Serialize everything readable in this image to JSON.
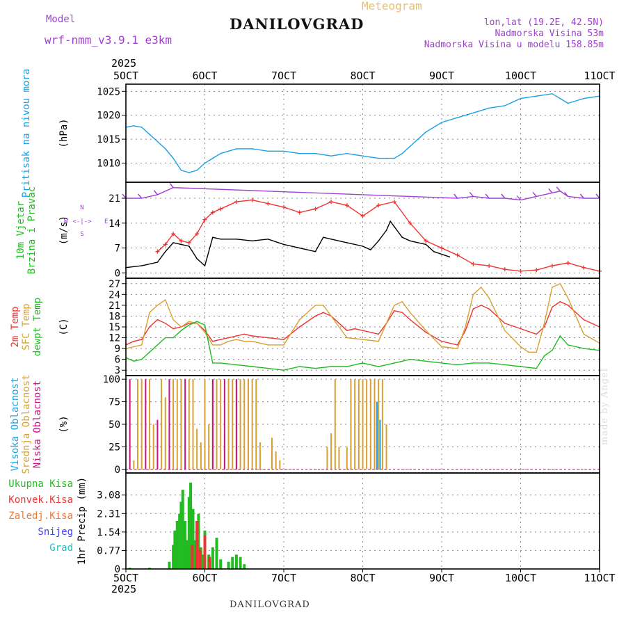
{
  "header": {
    "model_label": "Model",
    "model_name": "wrf-nmm_v3.9.1 e3km",
    "station": "DANILOVGRAD",
    "product": "Meteogram",
    "coords": "lon,lat (19.2E, 42.5N)",
    "elevation": "Nadmorska Visina 53m",
    "model_elevation": "Nadmorska Visina u modelu 158.85m",
    "year_top": "2025",
    "year_bottom": "2025",
    "footer_station": "DANILOVGRAD",
    "credit": "made by Angel"
  },
  "colors": {
    "pressure": "#1aa0e6",
    "wind10": "#22bb22",
    "wind_label2": "#e6a020",
    "temp2m": "#ee3333",
    "sfc": "#d8a030",
    "dewpt": "#22bb22",
    "high_cloud": "#1aa0e6",
    "mid_cloud": "#d8a030",
    "low_cloud": "#cc1188",
    "precip_total": "#22bb22",
    "precip_conv": "#ee3333",
    "precip_frz": "#ee7733",
    "snow": "#4040ee",
    "hail": "#22c0c0",
    "purple": "#a040d0",
    "axis": "#000000",
    "grid": "#888888"
  },
  "chart_data": [
    {
      "type": "line",
      "panel": "pressure",
      "title": "Meteogram",
      "ylabel_lines": [
        "Pritisak na nivou mora"
      ],
      "unit": "(hPa)",
      "x_ticks": [
        "5OCT",
        "6OCT",
        "7OCT",
        "8OCT",
        "9OCT",
        "10OCT",
        "11OCT"
      ],
      "ylim": [
        1006,
        1026.5
      ],
      "y_ticks": [
        1010,
        1015,
        1020,
        1025
      ],
      "series": [
        {
          "name": "Pritisak na nivou mora",
          "color_key": "pressure",
          "x": [
            5.0,
            5.1,
            5.2,
            5.3,
            5.4,
            5.5,
            5.6,
            5.7,
            5.8,
            5.9,
            6.0,
            6.1,
            6.2,
            6.3,
            6.4,
            6.6,
            6.8,
            7.0,
            7.2,
            7.4,
            7.6,
            7.8,
            8.0,
            8.2,
            8.3,
            8.4,
            8.5,
            8.6,
            8.7,
            8.8,
            9.0,
            9.2,
            9.4,
            9.6,
            9.8,
            10.0,
            10.2,
            10.4,
            10.5,
            10.6,
            10.8,
            11.0
          ],
          "y": [
            1017.5,
            1017.8,
            1017.5,
            1016,
            1014.5,
            1013,
            1011,
            1008.5,
            1008,
            1008.5,
            1010,
            1011,
            1012,
            1012.5,
            1013,
            1013,
            1012.5,
            1012.5,
            1012,
            1012,
            1011.5,
            1012,
            1011.5,
            1011,
            1011,
            1011,
            1012,
            1013.5,
            1015,
            1016.5,
            1018.5,
            1019.5,
            1020.5,
            1021.5,
            1022,
            1023.5,
            1024,
            1024.5,
            1023.5,
            1022.5,
            1023.5,
            1024
          ]
        }
      ]
    },
    {
      "type": "line",
      "panel": "wind",
      "ylabel_lines": [
        "10m Vjetar",
        "Brzina i Pravac"
      ],
      "unit": "(m/s)",
      "compass": [
        "W",
        "<-|->",
        "E",
        "N",
        "S"
      ],
      "ylim": [
        -1.5,
        25.5
      ],
      "y_ticks": [
        0,
        7,
        14,
        21
      ],
      "series": [
        {
          "name": "Brzina 10m",
          "color_key": "axis",
          "x": [
            5.0,
            5.2,
            5.4,
            5.5,
            5.6,
            5.7,
            5.8,
            5.9,
            6.0,
            6.1,
            6.2,
            6.4,
            6.6,
            6.8,
            7.0,
            7.2,
            7.4,
            7.5,
            7.6,
            7.8,
            8.0,
            8.1,
            8.2,
            8.3,
            8.35,
            8.4,
            8.5,
            8.6,
            8.8,
            8.9,
            9.1
          ],
          "y": [
            1.5,
            2,
            3,
            6,
            8.5,
            8,
            7.5,
            4,
            2,
            10,
            9.5,
            9.5,
            9,
            9.5,
            8,
            7,
            6,
            10,
            9.5,
            8.5,
            7.5,
            6.5,
            9,
            12,
            14.5,
            13,
            10,
            9,
            8,
            6,
            4.5
          ]
        },
        {
          "name": "Udari vjetra",
          "color_key": "temp2m",
          "x": [
            5.4,
            5.5,
            5.6,
            5.7,
            5.8,
            5.9,
            6.0,
            6.1,
            6.2,
            6.4,
            6.6,
            6.8,
            7.0,
            7.2,
            7.4,
            7.6,
            7.8,
            8.0,
            8.2,
            8.4,
            8.6,
            8.8,
            9.0,
            9.2,
            9.4,
            9.6,
            9.8,
            10.0,
            10.2,
            10.4,
            10.6,
            10.8,
            11.0
          ],
          "y": [
            6,
            8,
            11,
            9,
            8.5,
            11,
            15,
            17,
            18,
            20,
            20.5,
            19.5,
            18.5,
            17,
            18,
            20,
            19,
            16,
            19,
            20,
            14,
            9,
            7,
            5,
            2.5,
            2,
            1,
            0.5,
            0.8,
            2,
            2.8,
            1.5,
            0.5
          ]
        },
        {
          "name": "Pravac (ljubicasto)",
          "color_key": "purple",
          "x": [
            5.0,
            5.2,
            5.4,
            5.6,
            9.2,
            9.4,
            9.6,
            9.8,
            10.0,
            10.2,
            10.4,
            10.5,
            10.6,
            10.8,
            11.0
          ],
          "y": [
            21,
            21,
            22,
            24,
            21,
            21.5,
            21,
            21,
            20.5,
            21.5,
            22.5,
            23,
            21.5,
            21,
            21
          ]
        }
      ]
    },
    {
      "type": "line",
      "panel": "temperature",
      "ylabel_lines": [
        "2m Temp",
        "SFC Temp",
        "dewpt Temp"
      ],
      "unit": "(C)",
      "ylim": [
        1.5,
        28.5
      ],
      "y_ticks": [
        3,
        6,
        9,
        12,
        15,
        18,
        21,
        24,
        27
      ],
      "series": [
        {
          "name": "2m Temp",
          "color_key": "temp2m",
          "x": [
            5.0,
            5.1,
            5.2,
            5.3,
            5.4,
            5.5,
            5.6,
            5.7,
            5.8,
            5.9,
            6.0,
            6.1,
            6.2,
            6.3,
            6.4,
            6.5,
            6.6,
            6.8,
            7.0,
            7.2,
            7.4,
            7.5,
            7.6,
            7.8,
            7.9,
            8.0,
            8.2,
            8.3,
            8.4,
            8.5,
            8.6,
            8.8,
            9.0,
            9.2,
            9.3,
            9.4,
            9.5,
            9.6,
            9.8,
            10.0,
            10.2,
            10.3,
            10.4,
            10.5,
            10.6,
            10.8,
            11.0
          ],
          "y": [
            10,
            11,
            11.5,
            15,
            17,
            16,
            14.5,
            15,
            16,
            16,
            14,
            11,
            11.5,
            12,
            12.5,
            13,
            12.5,
            12,
            11.5,
            15,
            18,
            19,
            18,
            14,
            14.5,
            14,
            13,
            16,
            19.5,
            19,
            17,
            13.5,
            11,
            10,
            14,
            20,
            21,
            20,
            16,
            14.5,
            13,
            15,
            20.5,
            22,
            21,
            17,
            15
          ]
        },
        {
          "name": "SFC Temp",
          "color_key": "sfc",
          "x": [
            5.0,
            5.1,
            5.2,
            5.3,
            5.4,
            5.5,
            5.6,
            5.7,
            5.8,
            5.9,
            6.0,
            6.1,
            6.2,
            6.3,
            6.4,
            6.5,
            6.6,
            6.8,
            7.0,
            7.2,
            7.4,
            7.5,
            7.6,
            7.8,
            8.0,
            8.2,
            8.3,
            8.4,
            8.5,
            8.6,
            8.8,
            9.0,
            9.2,
            9.3,
            9.4,
            9.5,
            9.6,
            9.8,
            10.0,
            10.1,
            10.2,
            10.3,
            10.4,
            10.5,
            10.6,
            10.8,
            11.0
          ],
          "y": [
            9,
            9.5,
            10,
            19,
            21,
            22.5,
            17,
            15,
            16.5,
            16,
            13.5,
            10,
            10,
            11,
            11.5,
            11,
            11,
            10,
            10,
            17,
            21,
            21,
            18,
            12,
            11.5,
            11,
            16,
            21,
            22,
            19,
            14,
            9.5,
            9,
            15,
            24,
            26,
            23,
            14,
            9.5,
            8,
            8,
            16,
            26,
            27,
            23,
            13,
            10.5
          ]
        },
        {
          "name": "dewpt Temp",
          "color_key": "dewpt",
          "x": [
            5.0,
            5.1,
            5.2,
            5.3,
            5.4,
            5.5,
            5.6,
            5.7,
            5.8,
            5.9,
            6.0,
            6.1,
            6.2,
            6.4,
            6.6,
            6.8,
            7.0,
            7.2,
            7.4,
            7.6,
            7.8,
            8.0,
            8.2,
            8.4,
            8.6,
            8.8,
            9.0,
            9.2,
            9.4,
            9.6,
            9.8,
            10.0,
            10.2,
            10.3,
            10.4,
            10.5,
            10.6,
            10.8,
            11.0
          ],
          "y": [
            6.5,
            5.5,
            6,
            8,
            10,
            12,
            12,
            14,
            15.5,
            16.5,
            15.5,
            5,
            5,
            4.5,
            4,
            3.5,
            3,
            4,
            3.5,
            4,
            4,
            5,
            4,
            5,
            6,
            5.5,
            5,
            4.5,
            5,
            5,
            4.5,
            4,
            3.5,
            7,
            8.5,
            12.5,
            10,
            9,
            8.5
          ]
        }
      ]
    },
    {
      "type": "bar",
      "panel": "clouds",
      "ylabel_lines": [
        "Visoka Oblacnost",
        "Srednja Oblacnost",
        "Niska Oblacnost"
      ],
      "unit": "(%)",
      "ylim": [
        -4,
        104
      ],
      "y_ticks": [
        0,
        25,
        50,
        75,
        100
      ],
      "series": [
        {
          "name": "Srednja Oblacnost",
          "color_key": "mid_cloud",
          "x": [
            5.1,
            5.15,
            5.2,
            5.3,
            5.35,
            5.45,
            5.5,
            5.6,
            5.65,
            5.7,
            5.8,
            5.85,
            5.9,
            5.95,
            6.0,
            6.05,
            6.1,
            6.15,
            6.2,
            6.25,
            6.3,
            6.35,
            6.4,
            6.45,
            6.5,
            6.55,
            6.6,
            6.65,
            6.7,
            6.85,
            6.9,
            6.95,
            7.55,
            7.6,
            7.65,
            7.7,
            7.8,
            7.85,
            7.9,
            7.95,
            8.0,
            8.05,
            8.1,
            8.15,
            8.2,
            8.25,
            8.3
          ],
          "y": [
            10,
            100,
            100,
            100,
            50,
            100,
            80,
            100,
            100,
            100,
            100,
            100,
            45,
            30,
            100,
            50,
            100,
            100,
            100,
            40,
            100,
            100,
            100,
            100,
            100,
            100,
            100,
            100,
            30,
            35,
            20,
            10,
            25,
            40,
            100,
            25,
            25,
            100,
            100,
            100,
            100,
            100,
            100,
            100,
            100,
            100,
            50
          ]
        },
        {
          "name": "Niska Oblacnost",
          "color_key": "low_cloud",
          "x": [
            5.05,
            5.25,
            5.4,
            5.55,
            5.75,
            6.1,
            6.25,
            6.4
          ],
          "y": [
            100,
            100,
            55,
            100,
            100,
            100,
            100,
            100
          ]
        },
        {
          "name": "Visoka Oblacnost",
          "color_key": "high_cloud",
          "x": [
            8.18,
            8.22
          ],
          "y": [
            75,
            55
          ]
        }
      ]
    },
    {
      "type": "bar",
      "panel": "precip",
      "ylabel_lines": [
        "Ukupna Kisa",
        "Konvek.Kisa",
        "Zaledj.Kisa",
        "Snijeg",
        "Grad"
      ],
      "unit": "1hr Precip (mm)",
      "ylim": [
        0,
        4.0
      ],
      "y_ticks": [
        0,
        0.77,
        1.54,
        2.31,
        3.08
      ],
      "series": [
        {
          "name": "Ukupna Kisa",
          "color_key": "precip_total",
          "x": [
            5.05,
            5.3,
            5.55,
            5.6,
            5.62,
            5.65,
            5.68,
            5.7,
            5.72,
            5.75,
            5.78,
            5.8,
            5.82,
            5.85,
            5.88,
            5.9,
            5.92,
            5.95,
            5.98,
            6.0,
            6.05,
            6.1,
            6.15,
            6.2,
            6.3,
            6.35,
            6.4,
            6.45,
            6.5
          ],
          "y": [
            0.05,
            0.05,
            0.3,
            1.0,
            1.6,
            2.0,
            2.3,
            2.8,
            3.3,
            2.0,
            1.2,
            3.0,
            3.6,
            2.5,
            1.2,
            1.6,
            2.3,
            0.9,
            0.6,
            1.6,
            0.6,
            0.9,
            1.3,
            0.4,
            0.3,
            0.5,
            0.6,
            0.5,
            0.2
          ]
        },
        {
          "name": "Konvek.Kisa",
          "color_key": "precip_conv",
          "x": [
            5.84,
            5.9,
            5.94,
            6.0,
            6.06
          ],
          "y": [
            1.0,
            2.0,
            0.8,
            1.4,
            0.5
          ]
        }
      ]
    }
  ]
}
